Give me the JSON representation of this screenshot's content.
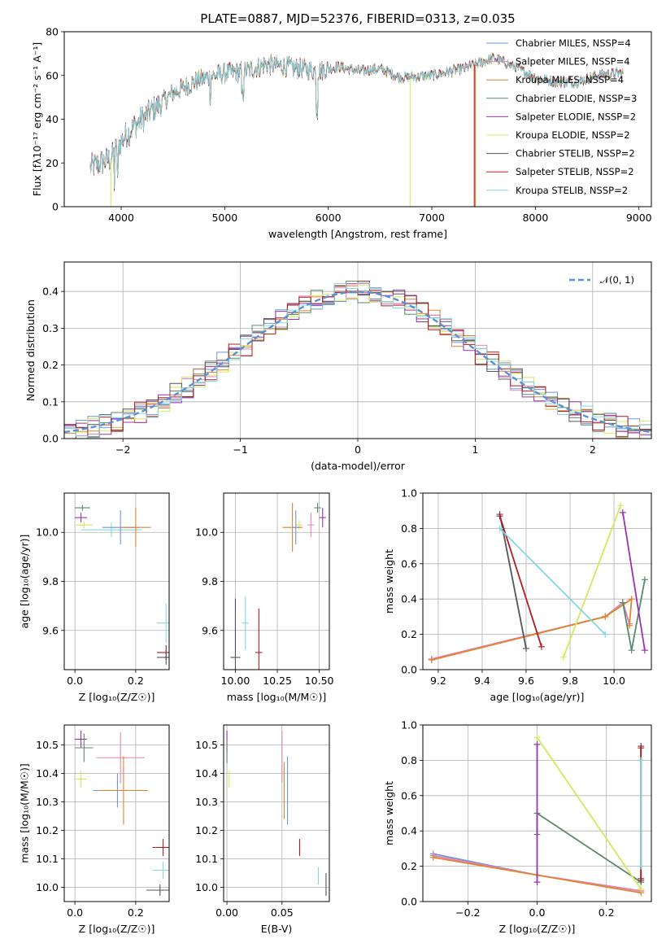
{
  "title": "PLATE=0887, MJD=52376, FIBERID=0313, z=0.035",
  "series_colors": [
    "#6f94e0",
    "#e384b4",
    "#e3832f",
    "#5a8a6a",
    "#9a33ad",
    "#d4e85a",
    "#555555",
    "#b01c22",
    "#83d8e0"
  ],
  "chart_data": [
    {
      "type": "line",
      "id": "spectrum",
      "xlabel": "wavelength [Angstrom, rest frame]",
      "ylabel": "Flux [fλ10⁻¹⁷ erg cm⁻² s⁻¹ A⁻¹]",
      "xlim": [
        3450,
        9120
      ],
      "ylim": [
        0,
        80
      ],
      "xticks": [
        4000,
        5000,
        6000,
        7000,
        8000,
        9000
      ],
      "yticks": [
        0,
        20,
        40,
        60,
        80
      ],
      "grid": false,
      "legend_position": "top-right",
      "series": [
        {
          "name": "Chabrier MILES, NSSP=4"
        },
        {
          "name": "Salpeter MILES, NSSP=4"
        },
        {
          "name": "Kroupa MILES, NSSP=4"
        },
        {
          "name": "Chabrier ELODIE, NSSP=3"
        },
        {
          "name": "Salpeter ELODIE, NSSP=2"
        },
        {
          "name": "Kroupa ELODIE, NSSP=2"
        },
        {
          "name": "Chabrier STELIB, NSSP=2"
        },
        {
          "name": "Salpeter STELIB, NSSP=2"
        },
        {
          "name": "Kroupa STELIB, NSSP=2"
        }
      ],
      "continuum": [
        [
          3700,
          18
        ],
        [
          3900,
          22
        ],
        [
          4000,
          30
        ],
        [
          4150,
          38
        ],
        [
          4300,
          44
        ],
        [
          4500,
          52
        ],
        [
          4750,
          58
        ],
        [
          5000,
          61
        ],
        [
          5200,
          62
        ],
        [
          5400,
          65
        ],
        [
          5600,
          64
        ],
        [
          5900,
          62
        ],
        [
          6100,
          64
        ],
        [
          6300,
          62
        ],
        [
          6500,
          63
        ],
        [
          6700,
          59
        ],
        [
          7000,
          60
        ],
        [
          7300,
          63
        ],
        [
          7600,
          68
        ],
        [
          7800,
          64
        ],
        [
          8000,
          59
        ],
        [
          8200,
          57
        ],
        [
          8400,
          57
        ],
        [
          8600,
          60
        ],
        [
          8800,
          61
        ]
      ],
      "drop_lines": [
        {
          "series": 5,
          "x": 6790
        },
        {
          "series": 2,
          "x": 7420
        },
        {
          "series": 7,
          "x": 7410
        },
        {
          "series": 5,
          "x": 3900
        }
      ]
    },
    {
      "type": "line",
      "id": "residual-histogram",
      "xlabel": "(data-model)/error",
      "ylabel": "Normed distribution",
      "xlim": [
        -2.5,
        2.5
      ],
      "ylim": [
        0,
        0.48
      ],
      "xticks": [
        -2,
        -1,
        0,
        1,
        2
      ],
      "yticks": [
        0.0,
        0.1,
        0.2,
        0.3,
        0.4
      ],
      "grid": true,
      "legend_position": "top-right",
      "legend_label": "𝒩(0, 1)",
      "reference_curve": {
        "type": "gaussian",
        "mean": 0,
        "sigma": 1
      },
      "bin_width": 0.1
    },
    {
      "type": "scatter",
      "id": "age-vs-Z",
      "xlabel": "Z [log₁₀(Z/Z☉)]",
      "ylabel": "age  [log₁₀(age/yr)]",
      "xlim": [
        -0.035,
        0.31
      ],
      "ylim": [
        9.44,
        10.16
      ],
      "xticks": [
        0.0,
        0.2
      ],
      "yticks": [
        9.6,
        9.8,
        10.0
      ],
      "grid": true,
      "points": [
        {
          "s": 3,
          "x": 0.025,
          "y": 10.1,
          "dx": 0.025,
          "dy": 0.012
        },
        {
          "s": 4,
          "x": 0.02,
          "y": 10.06,
          "dx": 0.02,
          "dy": 0.02
        },
        {
          "s": 5,
          "x": 0.03,
          "y": 10.03,
          "dx": 0.03,
          "dy": 0.015
        },
        {
          "s": 8,
          "x": 0.12,
          "y": 10.01,
          "dx": 0.1,
          "dy": 0.03
        },
        {
          "s": 0,
          "x": 0.15,
          "y": 10.02,
          "dx": 0.06,
          "dy": 0.07
        },
        {
          "s": 2,
          "x": 0.2,
          "y": 10.02,
          "dx": 0.05,
          "dy": 0.08
        },
        {
          "s": 8,
          "x": 0.3,
          "y": 9.63,
          "dx": 0.03,
          "dy": 0.08
        },
        {
          "s": 7,
          "x": 0.3,
          "y": 9.51,
          "dx": 0.03,
          "dy": 0.03
        },
        {
          "s": 6,
          "x": 0.3,
          "y": 9.49,
          "dx": 0.03,
          "dy": 0.03
        }
      ]
    },
    {
      "type": "scatter",
      "id": "age-vs-mass",
      "xlabel": "mass [log₁₀(M/M☉)]",
      "ylabel": "",
      "xlim": [
        9.93,
        10.56
      ],
      "ylim": [
        9.44,
        10.16
      ],
      "xticks": [
        10.0,
        10.25,
        10.5
      ],
      "yticks": [
        9.6,
        9.8,
        10.0
      ],
      "grid": true,
      "points": [
        {
          "s": 3,
          "x": 10.49,
          "y": 10.1,
          "dx": 0.02,
          "dy": 0.02
        },
        {
          "s": 4,
          "x": 10.52,
          "y": 10.06,
          "dx": 0.02,
          "dy": 0.04
        },
        {
          "s": 5,
          "x": 10.38,
          "y": 10.03,
          "dx": 0.02,
          "dy": 0.02
        },
        {
          "s": 1,
          "x": 10.45,
          "y": 10.03,
          "dx": 0.02,
          "dy": 0.05
        },
        {
          "s": 2,
          "x": 10.34,
          "y": 10.02,
          "dx": 0.06,
          "dy": 0.1
        },
        {
          "s": 0,
          "x": 10.36,
          "y": 10.02,
          "dx": 0.02,
          "dy": 0.07
        },
        {
          "s": 8,
          "x": 10.06,
          "y": 9.63,
          "dx": 0.02,
          "dy": 0.11
        },
        {
          "s": 7,
          "x": 10.14,
          "y": 9.51,
          "dx": 0.02,
          "dy": 0.18
        },
        {
          "s": 6,
          "x": 10.0,
          "y": 9.49,
          "dx": 0.03,
          "dy": 0.24
        }
      ]
    },
    {
      "type": "line",
      "id": "mass-weight-vs-age",
      "xlabel": "age  [log₁₀(age/yr)]",
      "ylabel": "mass weight",
      "xlim": [
        9.13,
        10.17
      ],
      "ylim": [
        0,
        1.0
      ],
      "xticks": [
        9.2,
        9.4,
        9.6,
        9.8,
        10.0
      ],
      "yticks": [
        0.0,
        0.2,
        0.4,
        0.6,
        0.8,
        1.0
      ],
      "grid": true,
      "series": [
        {
          "s": 0,
          "x": [
            9.17,
            9.96,
            10.04,
            10.07
          ],
          "y": [
            0.06,
            0.3,
            0.38,
            0.26
          ]
        },
        {
          "s": 1,
          "x": [
            9.17,
            9.96,
            10.04,
            10.07
          ],
          "y": [
            0.06,
            0.3,
            0.38,
            0.26
          ]
        },
        {
          "s": 2,
          "x": [
            9.17,
            9.96,
            10.08,
            10.07
          ],
          "y": [
            0.055,
            0.3,
            0.4,
            0.25
          ]
        },
        {
          "s": 3,
          "x": [
            10.04,
            10.08,
            10.14
          ],
          "y": [
            0.38,
            0.11,
            0.51
          ]
        },
        {
          "s": 4,
          "x": [
            10.04,
            10.14
          ],
          "y": [
            0.89,
            0.11
          ]
        },
        {
          "s": 5,
          "x": [
            9.77,
            10.03
          ],
          "y": [
            0.07,
            0.93
          ]
        },
        {
          "s": 6,
          "x": [
            9.48,
            9.6
          ],
          "y": [
            0.88,
            0.12
          ]
        },
        {
          "s": 7,
          "x": [
            9.48,
            9.67
          ],
          "y": [
            0.87,
            0.13
          ]
        },
        {
          "s": 8,
          "x": [
            9.48,
            9.96
          ],
          "y": [
            0.8,
            0.2
          ]
        }
      ]
    },
    {
      "type": "scatter",
      "id": "mass-vs-Z",
      "xlabel": "Z [log₁₀(Z/Z☉)]",
      "ylabel": "mass [log₁₀(M/M☉)]",
      "xlim": [
        -0.035,
        0.31
      ],
      "ylim": [
        9.95,
        10.57
      ],
      "xticks": [
        0.0,
        0.2
      ],
      "yticks": [
        10.0,
        10.1,
        10.2,
        10.3,
        10.4,
        10.5
      ],
      "grid": true,
      "points": [
        {
          "s": 4,
          "x": 0.02,
          "y": 10.52,
          "dx": 0.02,
          "dy": 0.03
        },
        {
          "s": 3,
          "x": 0.03,
          "y": 10.49,
          "dx": 0.03,
          "dy": 0.05
        },
        {
          "s": 1,
          "x": 0.15,
          "y": 10.455,
          "dx": 0.08,
          "dy": 0.09
        },
        {
          "s": 5,
          "x": 0.02,
          "y": 10.38,
          "dx": 0.02,
          "dy": 0.03
        },
        {
          "s": 0,
          "x": 0.14,
          "y": 10.34,
          "dx": 0.08,
          "dy": 0.06
        },
        {
          "s": 2,
          "x": 0.16,
          "y": 10.34,
          "dx": 0.08,
          "dy": 0.12
        },
        {
          "s": 7,
          "x": 0.29,
          "y": 10.14,
          "dx": 0.035,
          "dy": 0.03
        },
        {
          "s": 8,
          "x": 0.29,
          "y": 10.06,
          "dx": 0.035,
          "dy": 0.03
        },
        {
          "s": 6,
          "x": 0.28,
          "y": 9.99,
          "dx": 0.045,
          "dy": 0.02
        }
      ]
    },
    {
      "type": "scatter",
      "id": "mass-vs-EBV",
      "xlabel": "E(B-V)",
      "ylabel": "",
      "xlim": [
        -0.003,
        0.093
      ],
      "ylim": [
        9.95,
        10.57
      ],
      "xticks": [
        0.0,
        0.05
      ],
      "yticks": [
        10.0,
        10.1,
        10.2,
        10.3,
        10.4,
        10.5
      ],
      "grid": true,
      "points": [
        {
          "s": 4,
          "x": 0.0,
          "y": 10.51,
          "dx": 0.0,
          "dy": 0.04
        },
        {
          "s": 3,
          "x": 0.0,
          "y": 10.475,
          "dx": 0.0,
          "dy": 0.04
        },
        {
          "s": 5,
          "x": 0.002,
          "y": 10.38,
          "dx": 0.0,
          "dy": 0.03
        },
        {
          "s": 1,
          "x": 0.05,
          "y": 10.46,
          "dx": 0.0,
          "dy": 0.09
        },
        {
          "s": 2,
          "x": 0.052,
          "y": 10.34,
          "dx": 0.0,
          "dy": 0.1
        },
        {
          "s": 0,
          "x": 0.055,
          "y": 10.34,
          "dx": 0.0,
          "dy": 0.12
        },
        {
          "s": 7,
          "x": 0.066,
          "y": 10.14,
          "dx": 0.0,
          "dy": 0.03
        },
        {
          "s": 8,
          "x": 0.083,
          "y": 10.04,
          "dx": 0.0,
          "dy": 0.03
        },
        {
          "s": 6,
          "x": 0.09,
          "y": 10.01,
          "dx": 0.0,
          "dy": 0.04
        }
      ]
    },
    {
      "type": "line",
      "id": "mass-weight-vs-Z",
      "xlabel": "Z [log₁₀(Z/Z☉)]",
      "ylabel": "mass weight",
      "xlim": [
        -0.33,
        0.33
      ],
      "ylim": [
        0,
        1.0
      ],
      "xticks": [
        -0.2,
        0.0,
        0.2
      ],
      "yticks": [
        0.0,
        0.2,
        0.4,
        0.6,
        0.8,
        1.0
      ],
      "grid": true,
      "series": [
        {
          "s": 0,
          "x": [
            -0.3,
            0.0,
            0.3
          ],
          "y": [
            0.27,
            0.15,
            0.06
          ]
        },
        {
          "s": 1,
          "x": [
            -0.3,
            0.0,
            0.3
          ],
          "y": [
            0.26,
            0.15,
            0.06
          ]
        },
        {
          "s": 2,
          "x": [
            -0.3,
            0.0,
            0.3
          ],
          "y": [
            0.25,
            0.15,
            0.05
          ]
        },
        {
          "s": 3,
          "x": [
            0.0,
            0.0,
            0.3,
            0.3
          ],
          "y": [
            0.38,
            0.5,
            0.11,
            0.12
          ]
        },
        {
          "s": 4,
          "x": [
            0.0,
            0.0
          ],
          "y": [
            0.11,
            0.89
          ]
        },
        {
          "s": 5,
          "x": [
            0.0,
            0.3
          ],
          "y": [
            0.93,
            0.07
          ]
        },
        {
          "s": 6,
          "x": [
            0.3,
            0.3
          ],
          "y": [
            0.12,
            0.88
          ]
        },
        {
          "s": 7,
          "x": [
            0.3,
            0.3
          ],
          "y": [
            0.13,
            0.87
          ]
        },
        {
          "s": 8,
          "x": [
            0.3,
            0.3
          ],
          "y": [
            0.2,
            0.8
          ]
        }
      ]
    }
  ]
}
